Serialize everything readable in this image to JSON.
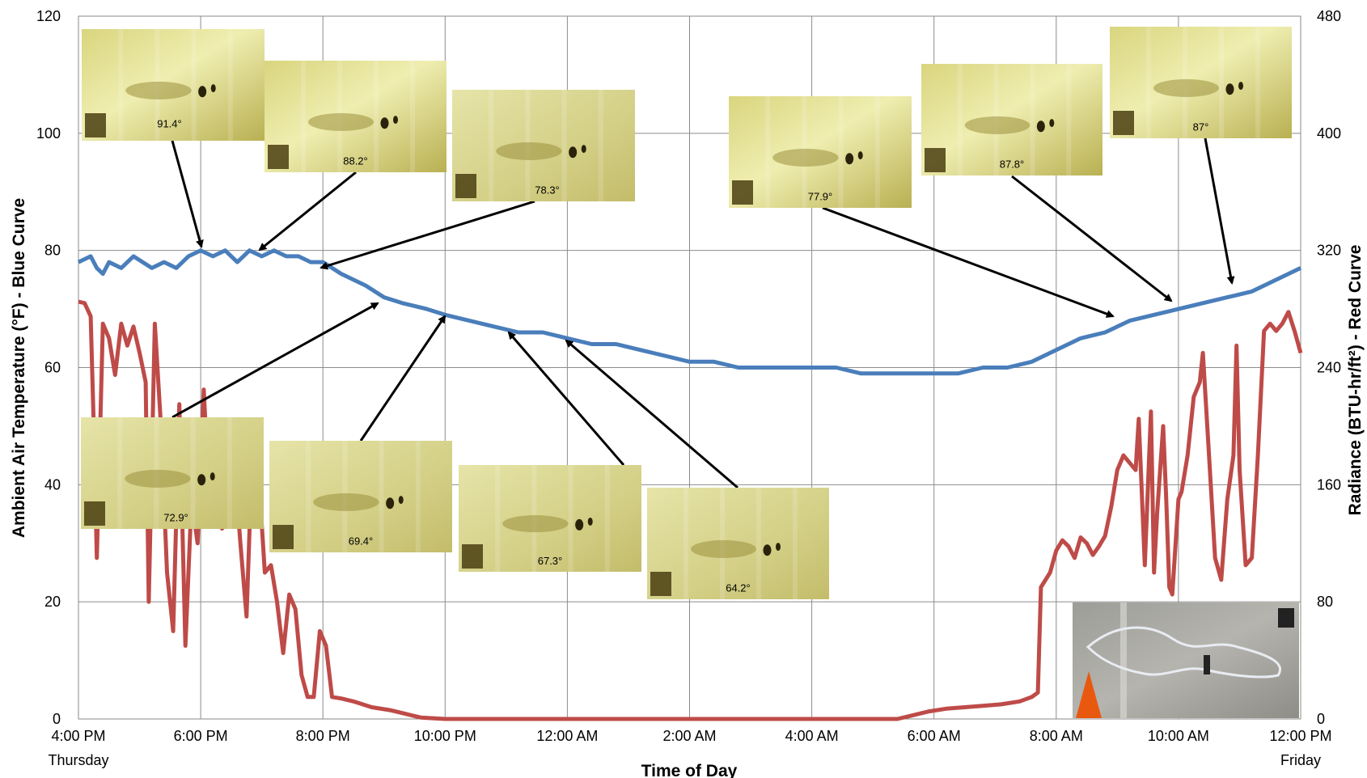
{
  "chart_data": {
    "type": "line",
    "xlabel": "Time of Day",
    "ylabel_left": "Ambient Air Temperature (°F) - Blue Curve",
    "ylabel_right": "Radiance (BTU-hr/ft²) - Red Curve",
    "ylim_left": [
      0,
      120
    ],
    "ylim_right": [
      0,
      480
    ],
    "yticks_left": [
      "0",
      "20",
      "40",
      "60",
      "80",
      "100",
      "120"
    ],
    "yticks_right": [
      "0",
      "80",
      "160",
      "240",
      "320",
      "400",
      "480"
    ],
    "xlim_hours": [
      0,
      20
    ],
    "xticks": [
      {
        "label": "4:00 PM",
        "day": "Thursday"
      },
      {
        "label": "6:00 PM",
        "day": ""
      },
      {
        "label": "8:00 PM",
        "day": ""
      },
      {
        "label": "10:00 PM",
        "day": ""
      },
      {
        "label": "12:00 AM",
        "day": ""
      },
      {
        "label": "2:00 AM",
        "day": ""
      },
      {
        "label": "4:00 AM",
        "day": ""
      },
      {
        "label": "6:00 AM",
        "day": ""
      },
      {
        "label": "8:00 AM",
        "day": ""
      },
      {
        "label": "10:00 AM",
        "day": ""
      },
      {
        "label": "12:00 PM",
        "day": "Friday"
      }
    ],
    "grid": true,
    "colors": {
      "temperature": "#4a7ebb",
      "radiance": "#be4b48"
    },
    "series": [
      {
        "axis": "left",
        "points": [
          [
            0,
            78
          ],
          [
            0.2,
            79
          ],
          [
            0.3,
            77
          ],
          [
            0.4,
            76
          ],
          [
            0.5,
            78
          ],
          [
            0.7,
            77
          ],
          [
            0.9,
            79
          ],
          [
            1.2,
            77
          ],
          [
            1.4,
            78
          ],
          [
            1.6,
            77
          ],
          [
            1.8,
            79
          ],
          [
            2.0,
            80
          ],
          [
            2.2,
            79
          ],
          [
            2.4,
            80
          ],
          [
            2.6,
            78
          ],
          [
            2.8,
            80
          ],
          [
            3.0,
            79
          ],
          [
            3.2,
            80
          ],
          [
            3.4,
            79
          ],
          [
            3.6,
            79
          ],
          [
            3.8,
            78
          ],
          [
            4.0,
            78
          ],
          [
            4.3,
            76
          ],
          [
            4.7,
            74
          ],
          [
            5.0,
            72
          ],
          [
            5.3,
            71
          ],
          [
            5.7,
            70
          ],
          [
            6.0,
            69
          ],
          [
            6.4,
            68
          ],
          [
            6.8,
            67
          ],
          [
            7.2,
            66
          ],
          [
            7.6,
            66
          ],
          [
            8.0,
            65
          ],
          [
            8.4,
            64
          ],
          [
            8.8,
            64
          ],
          [
            9.2,
            63
          ],
          [
            9.6,
            62
          ],
          [
            10.0,
            61
          ],
          [
            10.4,
            61
          ],
          [
            10.8,
            60
          ],
          [
            11.2,
            60
          ],
          [
            11.6,
            60
          ],
          [
            12.0,
            60
          ],
          [
            12.4,
            60
          ],
          [
            12.8,
            59
          ],
          [
            13.2,
            59
          ],
          [
            13.6,
            59
          ],
          [
            14.0,
            59
          ],
          [
            14.4,
            59
          ],
          [
            14.8,
            60
          ],
          [
            15.2,
            60
          ],
          [
            15.6,
            61
          ],
          [
            16.0,
            63
          ],
          [
            16.4,
            65
          ],
          [
            16.8,
            66
          ],
          [
            17.2,
            68
          ],
          [
            17.6,
            69
          ],
          [
            18.0,
            70
          ],
          [
            18.4,
            71
          ],
          [
            18.8,
            72
          ],
          [
            19.2,
            73
          ],
          [
            19.4,
            74
          ],
          [
            19.6,
            75
          ],
          [
            19.8,
            76
          ],
          [
            20.0,
            77
          ]
        ]
      },
      {
        "axis": "right",
        "points": [
          [
            0,
            285
          ],
          [
            0.1,
            284
          ],
          [
            0.2,
            275
          ],
          [
            0.25,
            200
          ],
          [
            0.3,
            110
          ],
          [
            0.4,
            270
          ],
          [
            0.5,
            260
          ],
          [
            0.6,
            235
          ],
          [
            0.7,
            270
          ],
          [
            0.8,
            255
          ],
          [
            0.9,
            268
          ],
          [
            1.0,
            250
          ],
          [
            1.1,
            230
          ],
          [
            1.15,
            80
          ],
          [
            1.25,
            270
          ],
          [
            1.35,
            200
          ],
          [
            1.45,
            100
          ],
          [
            1.55,
            60
          ],
          [
            1.65,
            215
          ],
          [
            1.75,
            50
          ],
          [
            1.85,
            150
          ],
          [
            1.95,
            120
          ],
          [
            2.05,
            225
          ],
          [
            2.15,
            140
          ],
          [
            2.25,
            160
          ],
          [
            2.35,
            130
          ],
          [
            2.45,
            135
          ],
          [
            2.55,
            175
          ],
          [
            2.65,
            120
          ],
          [
            2.75,
            70
          ],
          [
            2.85,
            190
          ],
          [
            2.95,
            165
          ],
          [
            3.05,
            100
          ],
          [
            3.15,
            105
          ],
          [
            3.25,
            80
          ],
          [
            3.35,
            45
          ],
          [
            3.45,
            85
          ],
          [
            3.55,
            75
          ],
          [
            3.65,
            30
          ],
          [
            3.75,
            15
          ],
          [
            3.85,
            15
          ],
          [
            3.95,
            60
          ],
          [
            4.05,
            50
          ],
          [
            4.15,
            15
          ],
          [
            4.3,
            14
          ],
          [
            4.5,
            12
          ],
          [
            4.8,
            8
          ],
          [
            5.1,
            6
          ],
          [
            5.4,
            3
          ],
          [
            5.6,
            1
          ],
          [
            6.0,
            0
          ],
          [
            8.0,
            0
          ],
          [
            10.0,
            0
          ],
          [
            12.0,
            0
          ],
          [
            13.4,
            0
          ],
          [
            13.6,
            2
          ],
          [
            13.9,
            5
          ],
          [
            14.2,
            7
          ],
          [
            14.5,
            8
          ],
          [
            14.8,
            9
          ],
          [
            15.1,
            10
          ],
          [
            15.4,
            12
          ],
          [
            15.6,
            15
          ],
          [
            15.7,
            18
          ],
          [
            15.75,
            90
          ],
          [
            15.9,
            100
          ],
          [
            16.0,
            115
          ],
          [
            16.1,
            122
          ],
          [
            16.2,
            118
          ],
          [
            16.3,
            110
          ],
          [
            16.4,
            124
          ],
          [
            16.5,
            120
          ],
          [
            16.6,
            112
          ],
          [
            16.7,
            118
          ],
          [
            16.8,
            125
          ],
          [
            16.9,
            145
          ],
          [
            17.0,
            170
          ],
          [
            17.1,
            180
          ],
          [
            17.2,
            175
          ],
          [
            17.3,
            170
          ],
          [
            17.35,
            205
          ],
          [
            17.45,
            105
          ],
          [
            17.55,
            210
          ],
          [
            17.6,
            100
          ],
          [
            17.65,
            140
          ],
          [
            17.75,
            200
          ],
          [
            17.8,
            150
          ],
          [
            17.85,
            90
          ],
          [
            17.9,
            85
          ],
          [
            18.0,
            150
          ],
          [
            18.05,
            155
          ],
          [
            18.15,
            180
          ],
          [
            18.25,
            220
          ],
          [
            18.35,
            230
          ],
          [
            18.4,
            250
          ],
          [
            18.5,
            180
          ],
          [
            18.6,
            110
          ],
          [
            18.7,
            95
          ],
          [
            18.8,
            150
          ],
          [
            18.9,
            180
          ],
          [
            18.95,
            255
          ],
          [
            19.0,
            170
          ],
          [
            19.1,
            105
          ],
          [
            19.2,
            110
          ],
          [
            19.3,
            180
          ],
          [
            19.4,
            265
          ],
          [
            19.5,
            270
          ],
          [
            19.6,
            265
          ],
          [
            19.7,
            270
          ],
          [
            19.8,
            278
          ],
          [
            19.9,
            265
          ],
          [
            20.0,
            250
          ]
        ]
      }
    ],
    "annotations": [
      "91.4°",
      "88.2°",
      "78.3°",
      "77.9°",
      "87.8°",
      "87°",
      "72.9°",
      "69.4°",
      "67.3°",
      "64.2°"
    ],
    "photo_colors": {
      "thermal_light": "#e6e49a",
      "thermal_mid": "#c8c26a",
      "thermal_dark": "#7a6a1e",
      "photo_gray": "#a8a8a2"
    }
  }
}
